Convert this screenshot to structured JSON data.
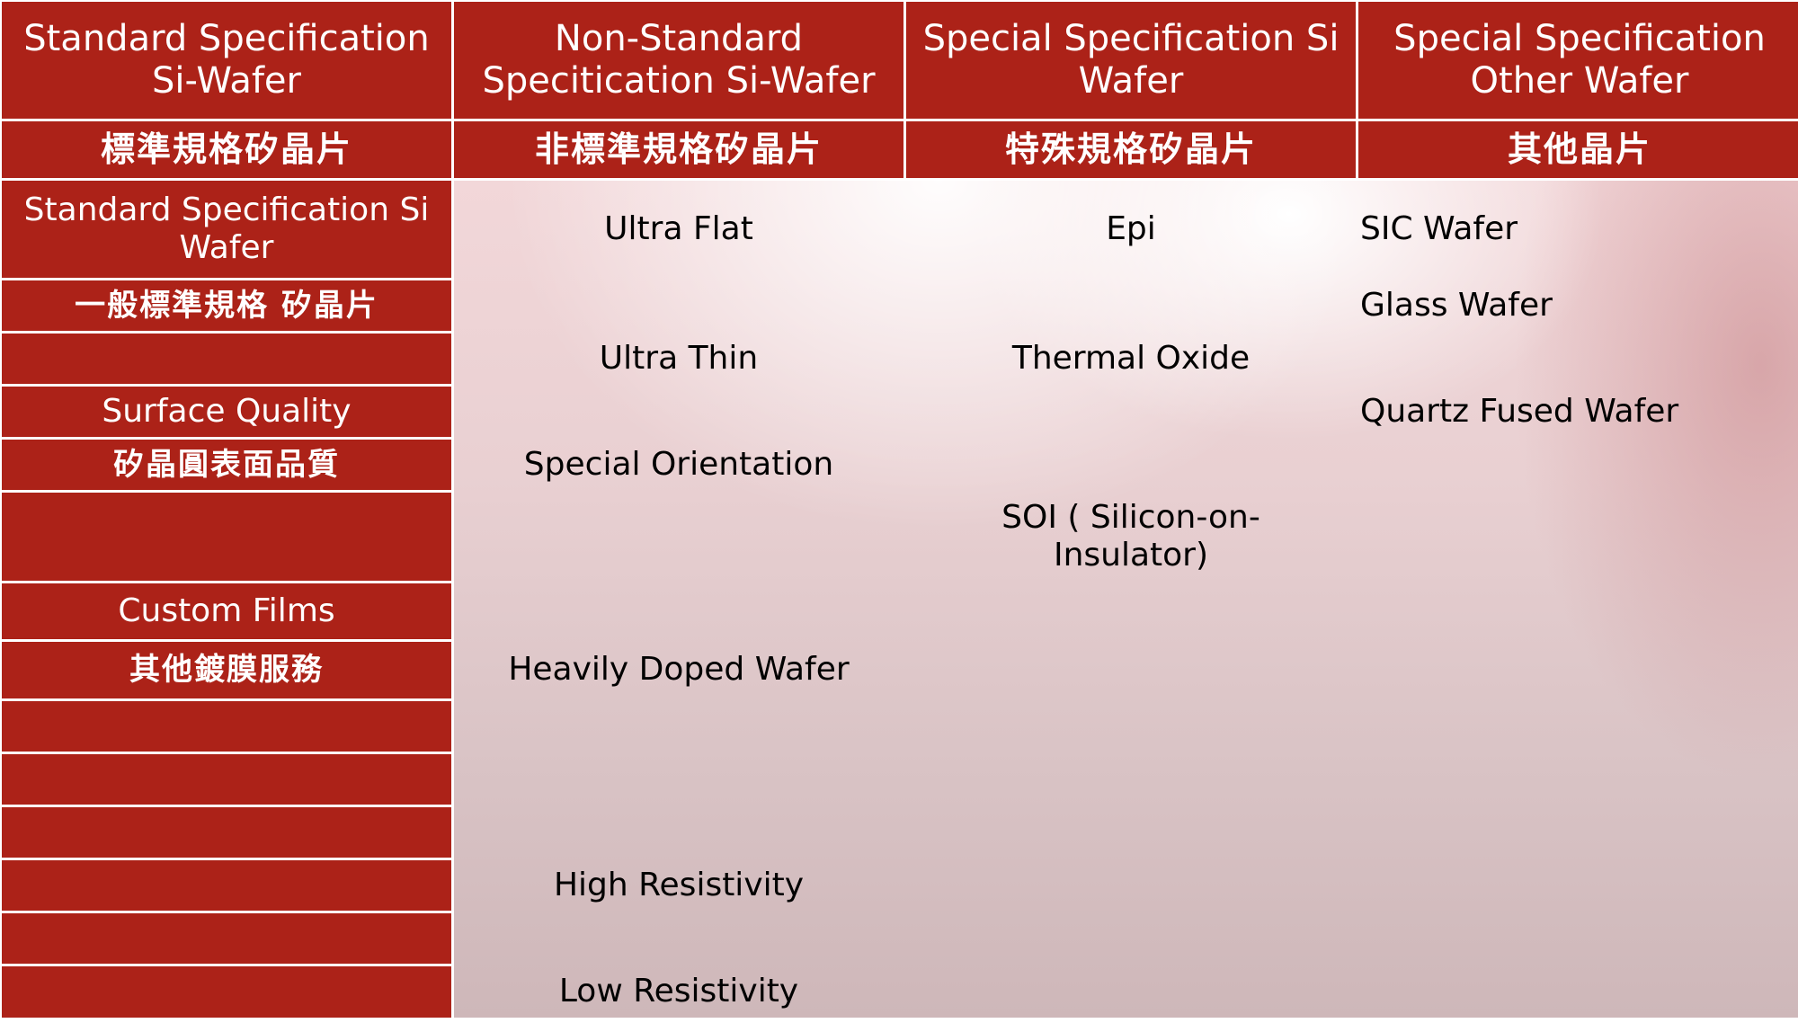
{
  "header": {
    "columns": [
      "Standard Specification Si-Wafer",
      "Non-Standard Specitication Si-Wafer",
      "Special Specification Si Wafer",
      "Special Specification Other Wafer"
    ],
    "chinese": [
      "標準規格矽晶片",
      "非標準規格矽晶片",
      "特殊規格矽晶片",
      "其他晶片"
    ]
  },
  "standard_items": [
    "Standard Specification Si Wafer",
    "一般標準規格 矽晶片",
    "Surface Quality",
    "矽晶圓表面品質",
    "Custom Films",
    "其他鍍膜服務"
  ],
  "non_standard_items": [
    "Ultra Flat",
    "Ultra Thin",
    "Special Orientation",
    "Heavily Doped Wafer",
    "High Resistivity",
    "Low Resistivity"
  ],
  "special_si_items": [
    "Epi",
    "Thermal Oxide",
    "SOI ( Silicon-on-Insulator)"
  ],
  "other_wafer_items": [
    "SIC Wafer",
    "Glass Wafer",
    "Quartz Fused Wafer"
  ],
  "colors": {
    "header_red": "#ac2218",
    "header_text": "#ffffff",
    "body_text": "#000000",
    "grid_lines": "#ffffff"
  }
}
